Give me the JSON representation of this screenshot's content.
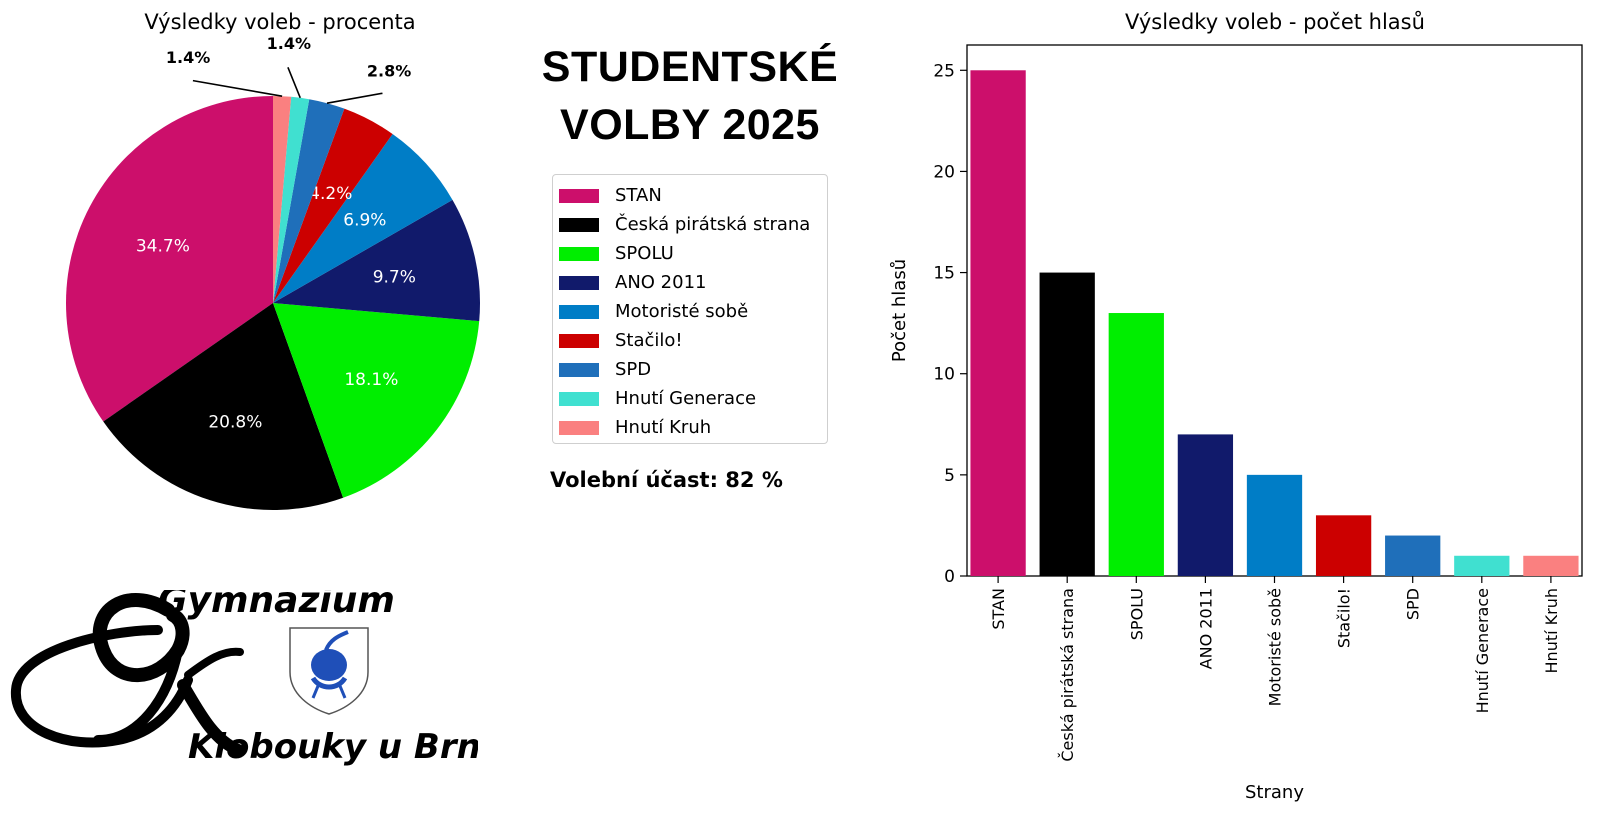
{
  "header": {
    "title_line1": "STUDENTSKÉ",
    "title_line2": "VOLBY 2025"
  },
  "turnout": {
    "label": "Volební účast:",
    "value": "82 %"
  },
  "logo": {
    "text_line1": "Gymnázium",
    "text_line2": "Klobouky u Brna"
  },
  "chart_data": [
    {
      "type": "pie",
      "title": "Výsledky voleb - procenta",
      "labels": [
        "STAN",
        "Česká pirátská strana",
        "SPOLU",
        "ANO 2011",
        "Motoristé sobě",
        "Stačilo!",
        "SPD",
        "Hnutí Generace",
        "Hnutí Kruh"
      ],
      "values": [
        34.7,
        20.8,
        18.1,
        9.7,
        6.9,
        4.2,
        2.8,
        1.4,
        1.4
      ],
      "value_labels": [
        "34.7%",
        "20.8%",
        "18.1%",
        "9.7%",
        "6.9%",
        "4.2%",
        "2.8%",
        "1.4%",
        "1.4%"
      ],
      "colors": [
        "#cc0f6b",
        "#000000",
        "#00ee00",
        "#111a6b",
        "#007dc6",
        "#cc0000",
        "#1f6fba",
        "#40e0d0",
        "#fa8080"
      ],
      "start_angle": 90,
      "direction": "counterclockwise",
      "small_slice_labels_outside": true,
      "legend": {
        "position": "right",
        "entries": [
          "STAN",
          "Česká pirátská strana",
          "SPOLU",
          "ANO 2011",
          "Motoristé sobě",
          "Stačilo!",
          "SPD",
          "Hnutí Generace",
          "Hnutí Kruh"
        ]
      }
    },
    {
      "type": "bar",
      "title": "Výsledky voleb - počet hlasů",
      "categories": [
        "STAN",
        "Česká pirátská strana",
        "SPOLU",
        "ANO 2011",
        "Motoristé sobě",
        "Stačilo!",
        "SPD",
        "Hnutí Generace",
        "Hnutí Kruh"
      ],
      "values": [
        25,
        15,
        13,
        7,
        5,
        3,
        2,
        1,
        1
      ],
      "colors": [
        "#cc0f6b",
        "#000000",
        "#00ee00",
        "#111a6b",
        "#007dc6",
        "#cc0000",
        "#1f6fba",
        "#40e0d0",
        "#fa8080"
      ],
      "xlabel": "Strany",
      "ylabel": "Počet hlasů",
      "ylim": [
        0,
        26.25
      ],
      "yticks": [
        0,
        5,
        10,
        15,
        20,
        25
      ],
      "xtick_rotation": 90,
      "grid": false
    }
  ]
}
